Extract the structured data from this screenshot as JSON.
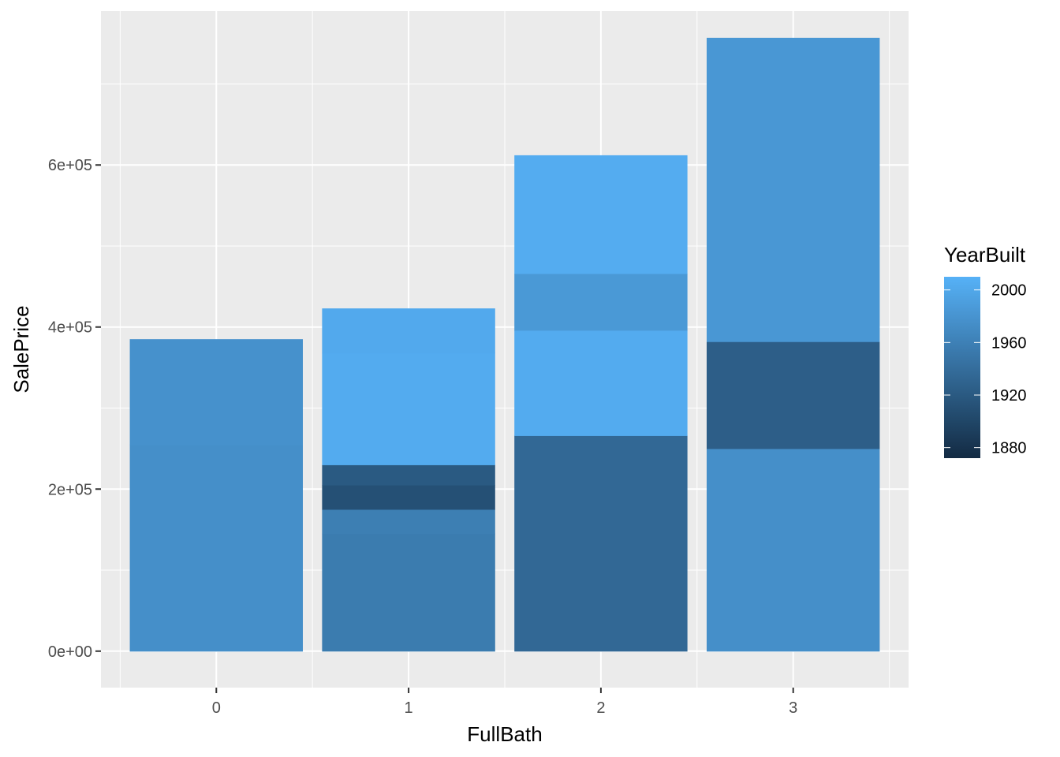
{
  "chart_data": {
    "type": "bar",
    "stacked": true,
    "xlabel": "FullBath",
    "ylabel": "SalePrice",
    "categories": [
      "0",
      "1",
      "2",
      "3"
    ],
    "ylim": [
      -45000,
      790000
    ],
    "y_ticks": [
      0,
      200000,
      400000,
      600000
    ],
    "y_tick_labels": [
      "0e+00",
      "2e+05",
      "4e+05",
      "6e+05"
    ],
    "grid": true,
    "bars": [
      {
        "category": "0",
        "segments": [
          {
            "value": 255000,
            "year": 1975
          },
          {
            "value": 130000,
            "year": 1977
          }
        ]
      },
      {
        "category": "1",
        "segments": [
          {
            "value": 145000,
            "year": 1955
          },
          {
            "value": 30000,
            "year": 1958
          },
          {
            "value": 30000,
            "year": 1910
          },
          {
            "value": 25000,
            "year": 1920
          },
          {
            "value": 138000,
            "year": 2004
          },
          {
            "value": 55000,
            "year": 2002
          }
        ]
      },
      {
        "category": "2",
        "segments": [
          {
            "value": 266000,
            "year": 1935
          },
          {
            "value": 130000,
            "year": 2004
          },
          {
            "value": 70000,
            "year": 1985
          },
          {
            "value": 146000,
            "year": 2005
          }
        ]
      },
      {
        "category": "3",
        "segments": [
          {
            "value": 250000,
            "year": 1975
          },
          {
            "value": 132000,
            "year": 1925
          },
          {
            "value": 375000,
            "year": 1983
          }
        ]
      }
    ],
    "legend": {
      "title": "YearBuilt",
      "range": [
        1872,
        2010
      ],
      "ticks": [
        1880,
        1920,
        1960,
        2000
      ],
      "tick_labels": [
        "1880",
        "1920",
        "1960",
        "2000"
      ],
      "low_color": "#132B43",
      "high_color": "#56B1F7",
      "placement": "right"
    },
    "colors": {
      "panel_background": "#EBEBEB",
      "grid": "#FFFFFF",
      "tick_label": "#4D4D4D",
      "tick_mark": "#333333"
    }
  }
}
